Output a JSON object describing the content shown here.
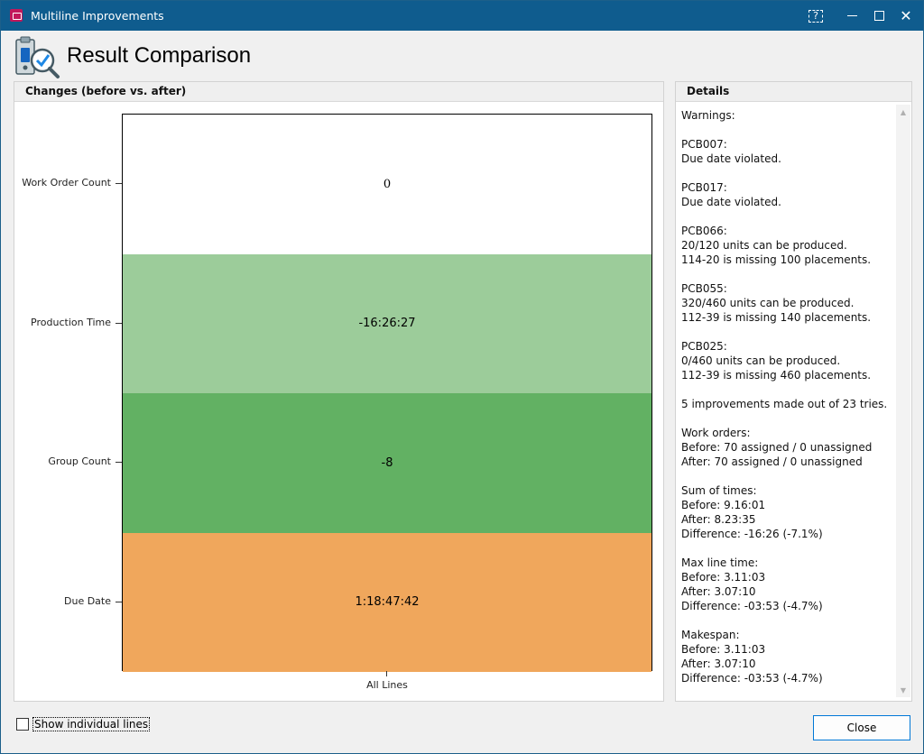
{
  "window": {
    "title": "Multiline Improvements",
    "help_glyph": "?",
    "close_glyph": "✕"
  },
  "header": {
    "title": "Result Comparison",
    "icon": "clipboard-check-icon"
  },
  "chart_panel": {
    "title": "Changes (before vs. after)"
  },
  "chart_data": {
    "type": "heatmap",
    "x_categories": [
      "All Lines"
    ],
    "y_categories": [
      "Work Order Count",
      "Production Time",
      "Group Count",
      "Due Date"
    ],
    "cells": [
      {
        "row": "Work Order Count",
        "column": "All Lines",
        "label": "0",
        "color": "#ffffff"
      },
      {
        "row": "Production Time",
        "column": "All Lines",
        "label": "-16:26:27",
        "color": "#9ccc9a"
      },
      {
        "row": "Group Count",
        "column": "All Lines",
        "label": "-8",
        "color": "#62b163"
      },
      {
        "row": "Due Date",
        "column": "All Lines",
        "label": "1:18:47:42",
        "color": "#f0a75c"
      }
    ]
  },
  "details_panel": {
    "title": "Details",
    "lines": [
      "Warnings:",
      "",
      "PCB007:",
      "Due date violated.",
      "",
      "PCB017:",
      "Due date violated.",
      "",
      "PCB066:",
      "20/120 units can be produced.",
      "114-20 is missing 100 placements.",
      "",
      "PCB055:",
      "320/460 units can be produced.",
      "112-39 is missing 140 placements.",
      "",
      "PCB025:",
      "0/460 units can be produced.",
      "112-39 is missing 460 placements.",
      "",
      "5 improvements made out of 23 tries.",
      "",
      "Work orders:",
      "Before: 70 assigned / 0 unassigned",
      "After: 70 assigned / 0 unassigned",
      "",
      "Sum of times:",
      "Before: 9.16:01",
      "After: 8.23:35",
      "Difference: -16:26 (-7.1%)",
      "",
      "Max line time:",
      "Before: 3.11:03",
      "After: 3.07:10",
      "Difference: -03:53 (-4.7%)",
      "",
      "Makespan:",
      "Before: 3.11:03",
      "After: 3.07:10",
      "Difference: -03:53 (-4.7%)"
    ]
  },
  "footer": {
    "show_individual_lines_label": "Show individual lines",
    "show_individual_lines_checked": false,
    "close_label": "Close"
  }
}
